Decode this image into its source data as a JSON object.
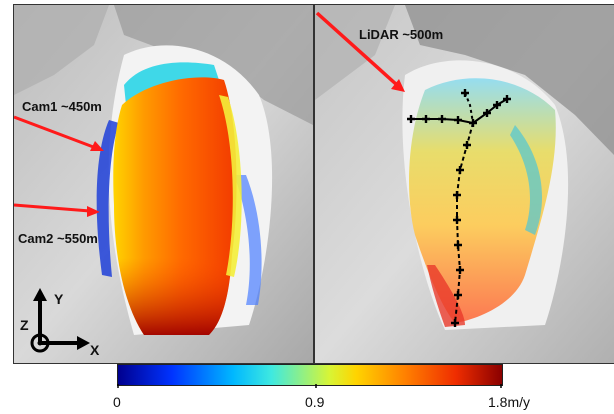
{
  "left_panel": {
    "labels": {
      "cam1": "Cam1 ~450m",
      "cam2": "Cam2 ~550m"
    },
    "axes": {
      "y_label": "Y",
      "z_label": "Z",
      "x_label": "X"
    }
  },
  "right_panel": {
    "labels": {
      "lidar": "LiDAR ~500m"
    }
  },
  "colorbar": {
    "min_label": "0",
    "mid_label": "0.9",
    "max_label": "1.8m/y"
  },
  "colors": {
    "arrow": "#ff1a1a",
    "terrain_light": "#e8e8e8",
    "terrain_dark": "#8e8e8e",
    "path_marker": "#000000"
  }
}
